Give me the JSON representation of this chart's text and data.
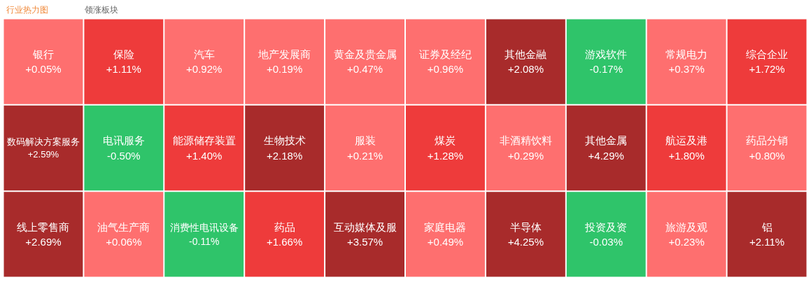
{
  "chart_data": {
    "type": "other",
    "title": "行业热力图",
    "annotations": [
      "领涨板块"
    ],
    "categories": [
      "银行",
      "数码解决方案服务",
      "线上零售商",
      "保险",
      "电讯服务",
      "油气生产商",
      "汽车",
      "能源储存装置",
      "消费性电讯设备",
      "地产发展商",
      "生物技术",
      "药品",
      "黄金及贵金属",
      "服装",
      "互动媒体及服",
      "证券及经纪",
      "煤炭",
      "家庭电器",
      "其他金融",
      "非酒精饮料",
      "半导体",
      "游戏软件",
      "常规电力",
      "综合企业",
      "其他金属",
      "投资及资",
      "航运及港",
      "药品分销",
      "旅游及观",
      "铝"
    ],
    "values": [
      0.05,
      2.59,
      2.69,
      1.11,
      -0.5,
      0.06,
      0.92,
      1.4,
      -0.11,
      0.19,
      2.18,
      1.66,
      0.47,
      0.21,
      3.57,
      0.96,
      1.28,
      0.49,
      2.08,
      0.29,
      4.25,
      -0.17,
      0.37,
      1.72,
      4.29,
      -0.03,
      1.8,
      0.8,
      0.23,
      2.11
    ],
    "value_labels": [
      "+0.05%",
      "+2.59%",
      "+2.69%",
      "+1.11%",
      "-0.50%",
      "+0.06%",
      "+0.92%",
      "+1.40%",
      "-0.11%",
      "+0.19%",
      "+2.18%",
      "+1.66%",
      "+0.47%",
      "+0.21%",
      "+3.57%",
      "+0.96%",
      "+1.28%",
      "+0.49%",
      "+2.08%",
      "+0.29%",
      "+4.25%",
      "-0.17%",
      "+0.37%",
      "+1.72%",
      "+4.29%",
      "-0.03%",
      "+1.80%",
      "+0.80%",
      "+0.23%",
      "+2.11%"
    ],
    "colors": [
      "#fe6f6f",
      "#a82b2b",
      "#a82b2b",
      "#ee3b3b",
      "#2fc46a",
      "#fe6f6f",
      "#fe6f6f",
      "#ee3b3b",
      "#2fc46a",
      "#fe6f6f",
      "#a82b2b",
      "#ee3b3b",
      "#fe6f6f",
      "#fe6f6f",
      "#a82b2b",
      "#fe6f6f",
      "#ee3b3b",
      "#fe6f6f",
      "#a82b2b",
      "#fe6f6f",
      "#a82b2b",
      "#2fc46a",
      "#fe6f6f",
      "#ee3b3b",
      "#a82b2b",
      "#2fc46a",
      "#ee3b3b",
      "#fe6f6f",
      "#fe6f6f",
      "#a82b2b"
    ]
  }
}
